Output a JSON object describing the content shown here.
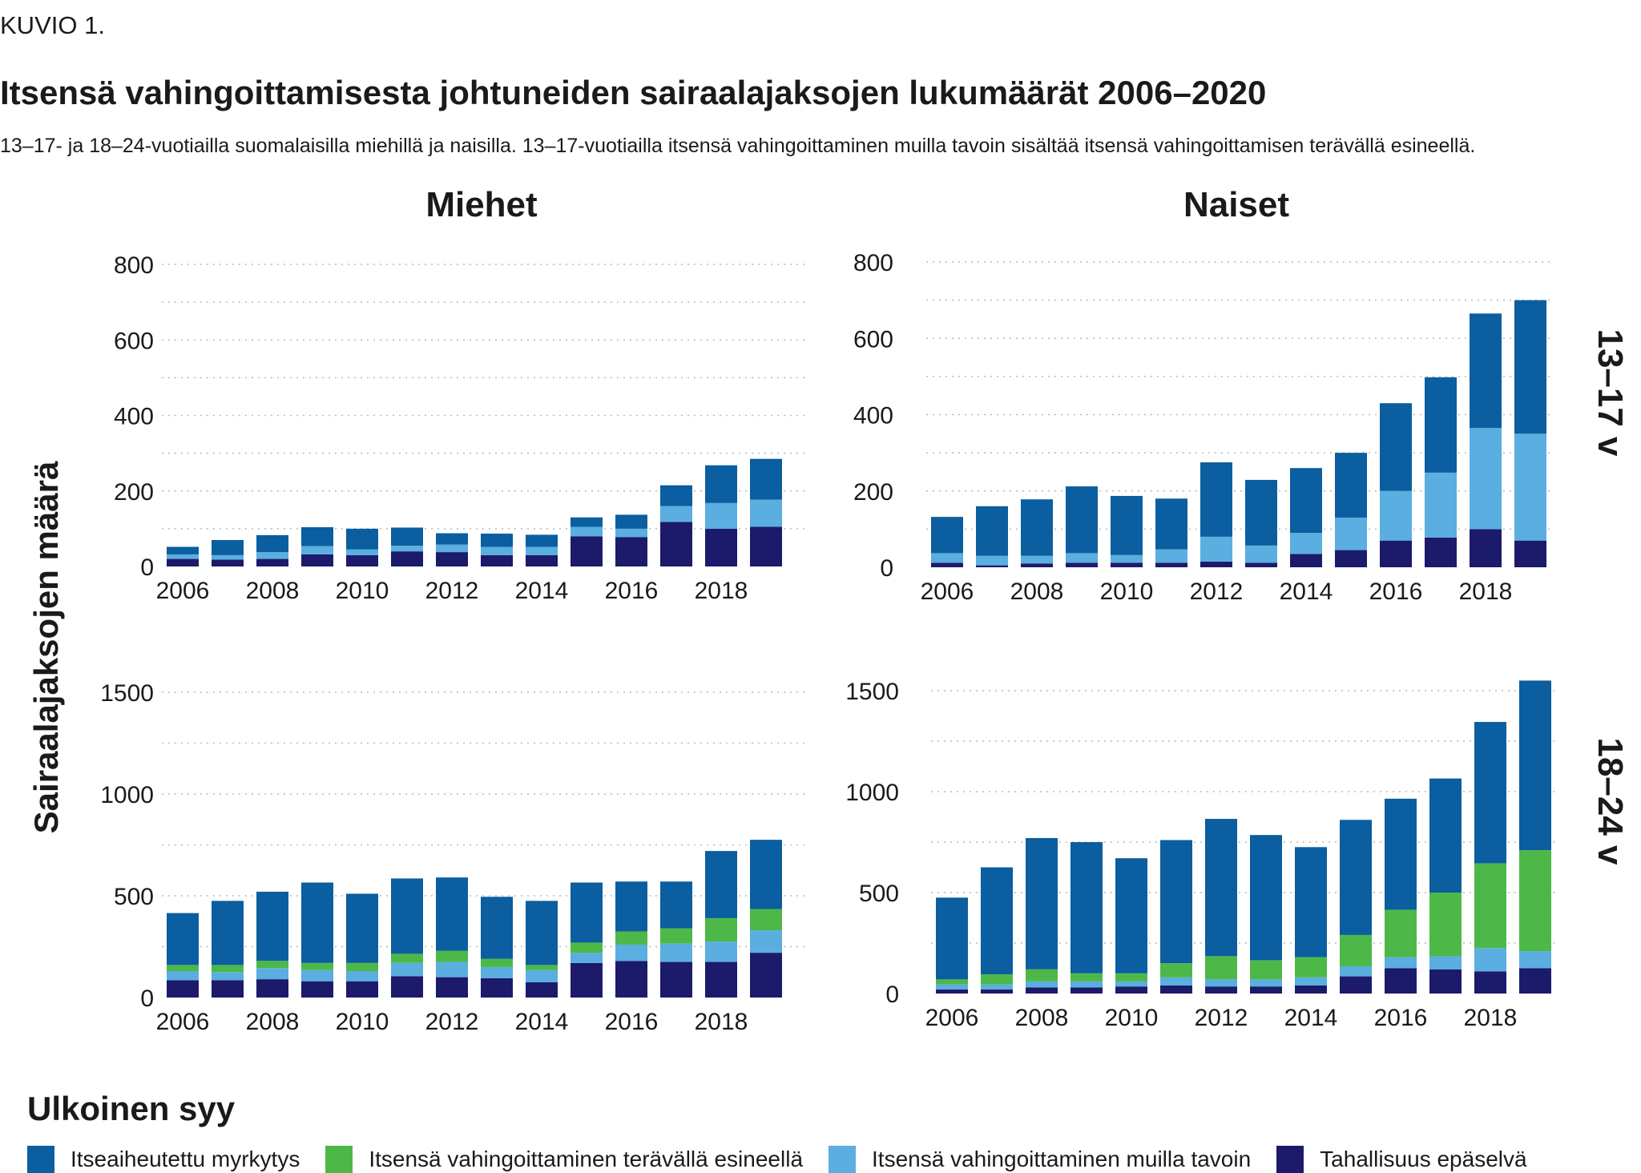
{
  "header": {
    "kicker": "KUVIO 1.",
    "title": "Itsensä vahingoittamisesta johtuneiden sairaalajaksojen lukumäärät 2006–2020",
    "subtitle": "13–17- ja 18–24-vuotiailla suomalaisilla miehillä ja naisilla. 13–17-vuotiailla itsensä vahingoittaminen muilla tavoin sisältää itsensä vahingoittamisen terävällä esineellä."
  },
  "y_axis_title": "Sairaalajaksojen määrä",
  "legend": {
    "title": "Ulkoinen syy",
    "items": [
      {
        "label": "Itseaiheutettu myrkytys",
        "color": "#0b5e9f"
      },
      {
        "label": "Itsensä vahingoittaminen terävällä esineellä",
        "color": "#4db848"
      },
      {
        "label": "Itsensä vahingoittaminen muilla tavoin",
        "color": "#5aaee0"
      },
      {
        "label": "Tahallisuus epäselvä",
        "color": "#1c1a6b"
      }
    ]
  },
  "chart_data": [
    {
      "type": "bar",
      "stacked": true,
      "column_label": "Miehet",
      "row_label": "",
      "categories": [
        2006,
        2007,
        2008,
        2009,
        2010,
        2011,
        2012,
        2013,
        2014,
        2015,
        2016,
        2017,
        2018,
        2019
      ],
      "tick_labels": [
        "2006",
        "2008",
        "2010",
        "2012",
        "2014",
        "2016",
        "2018"
      ],
      "y_ticks": [
        0,
        200,
        400,
        600,
        800
      ],
      "ylim": [
        0,
        800
      ],
      "grid": true,
      "series": [
        {
          "name": "Tahallisuus epäselvä",
          "values": [
            20,
            18,
            20,
            32,
            30,
            40,
            38,
            30,
            30,
            80,
            78,
            118,
            100,
            105
          ]
        },
        {
          "name": "Itsensä vahingoittaminen muilla tavoin",
          "values": [
            12,
            12,
            18,
            22,
            15,
            15,
            20,
            22,
            22,
            25,
            22,
            42,
            68,
            72
          ]
        },
        {
          "name": "Itseaiheutettu myrkytys",
          "values": [
            20,
            40,
            45,
            50,
            55,
            48,
            30,
            35,
            32,
            25,
            37,
            55,
            100,
            108
          ]
        }
      ]
    },
    {
      "type": "bar",
      "stacked": true,
      "column_label": "Naiset",
      "row_label": "13–17 v",
      "categories": [
        2006,
        2007,
        2008,
        2009,
        2010,
        2011,
        2012,
        2013,
        2014,
        2015,
        2016,
        2017,
        2018,
        2019
      ],
      "tick_labels": [
        "2006",
        "2008",
        "2010",
        "2012",
        "2014",
        "2016",
        "2018"
      ],
      "y_ticks": [
        0,
        200,
        400,
        600,
        800
      ],
      "ylim": [
        0,
        800
      ],
      "grid": true,
      "series": [
        {
          "name": "Tahallisuus epäselvä",
          "values": [
            12,
            5,
            10,
            12,
            12,
            12,
            15,
            12,
            35,
            45,
            70,
            78,
            100,
            70
          ]
        },
        {
          "name": "Itsensä vahingoittaminen muilla tavoin",
          "values": [
            25,
            25,
            20,
            25,
            20,
            35,
            65,
            45,
            55,
            85,
            130,
            170,
            265,
            280
          ]
        },
        {
          "name": "Itseaiheutettu myrkytys",
          "values": [
            95,
            130,
            148,
            175,
            155,
            133,
            195,
            172,
            170,
            170,
            230,
            250,
            300,
            350
          ]
        }
      ]
    },
    {
      "type": "bar",
      "stacked": true,
      "column_label": "Miehet",
      "row_label": "",
      "categories": [
        2006,
        2007,
        2008,
        2009,
        2010,
        2011,
        2012,
        2013,
        2014,
        2015,
        2016,
        2017,
        2018,
        2019
      ],
      "tick_labels": [
        "2006",
        "2008",
        "2010",
        "2012",
        "2014",
        "2016",
        "2018"
      ],
      "y_ticks": [
        0,
        500,
        1000,
        1500
      ],
      "ylim": [
        0,
        1500
      ],
      "grid": true,
      "series": [
        {
          "name": "Tahallisuus epäselvä",
          "values": [
            85,
            85,
            90,
            80,
            80,
            105,
            100,
            95,
            75,
            170,
            180,
            175,
            175,
            220
          ]
        },
        {
          "name": "Itsensä vahingoittaminen muilla tavoin",
          "values": [
            45,
            40,
            55,
            55,
            50,
            65,
            75,
            55,
            60,
            50,
            80,
            90,
            100,
            110
          ]
        },
        {
          "name": "Itsensä vahingoittaminen terävällä esineellä",
          "values": [
            30,
            35,
            35,
            35,
            40,
            45,
            55,
            40,
            25,
            50,
            65,
            75,
            115,
            105
          ]
        },
        {
          "name": "Itseaiheutettu myrkytys",
          "values": [
            255,
            315,
            340,
            395,
            340,
            370,
            360,
            305,
            315,
            295,
            245,
            230,
            330,
            340
          ]
        }
      ]
    },
    {
      "type": "bar",
      "stacked": true,
      "column_label": "Naiset",
      "row_label": "18–24 v",
      "categories": [
        2006,
        2007,
        2008,
        2009,
        2010,
        2011,
        2012,
        2013,
        2014,
        2015,
        2016,
        2017,
        2018,
        2019
      ],
      "tick_labels": [
        "2006",
        "2008",
        "2010",
        "2012",
        "2014",
        "2016",
        "2018"
      ],
      "y_ticks": [
        0,
        500,
        1000,
        1500
      ],
      "ylim": [
        0,
        1500
      ],
      "grid": true,
      "series": [
        {
          "name": "Tahallisuus epäselvä",
          "values": [
            20,
            20,
            30,
            30,
            35,
            40,
            35,
            35,
            40,
            85,
            125,
            120,
            110,
            125
          ]
        },
        {
          "name": "Itsensä vahingoittaminen muilla tavoin",
          "values": [
            25,
            25,
            30,
            30,
            25,
            40,
            35,
            35,
            40,
            50,
            55,
            65,
            115,
            85
          ]
        },
        {
          "name": "Itsensä vahingoittaminen terävällä esineellä",
          "values": [
            25,
            50,
            60,
            40,
            40,
            70,
            115,
            95,
            100,
            155,
            235,
            315,
            420,
            500
          ]
        },
        {
          "name": "Itseaiheutettu myrkytys",
          "values": [
            405,
            530,
            650,
            650,
            570,
            610,
            680,
            620,
            545,
            570,
            550,
            565,
            700,
            840
          ]
        }
      ]
    }
  ]
}
